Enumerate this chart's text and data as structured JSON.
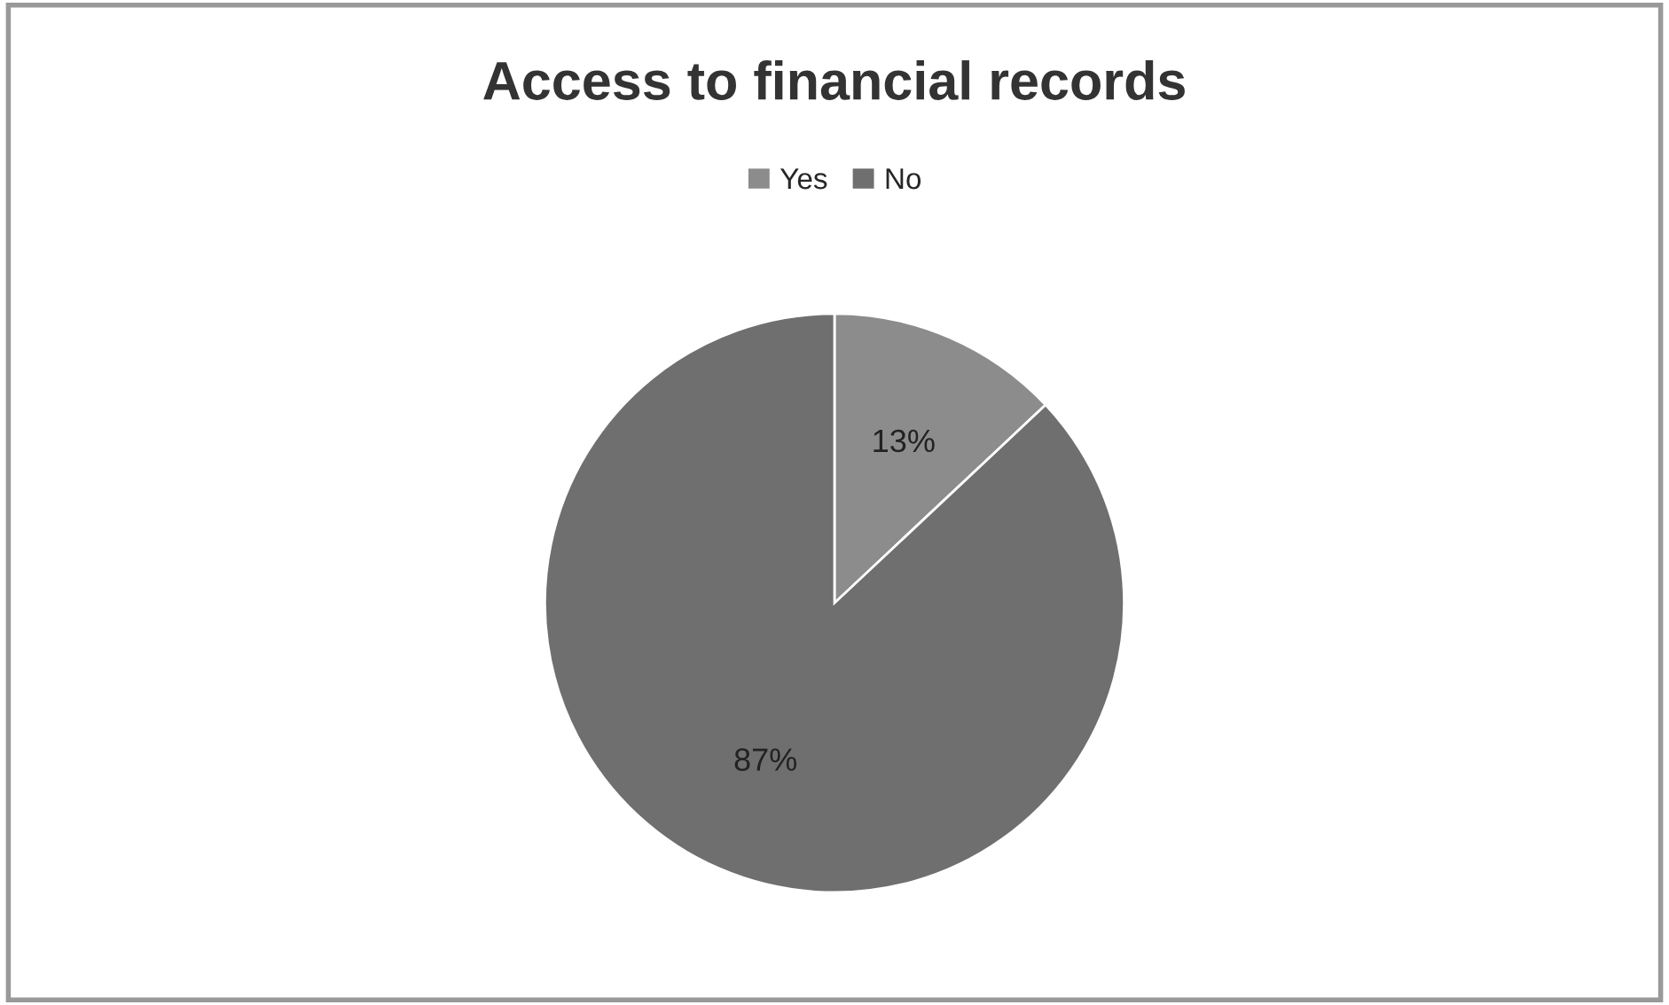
{
  "chart_data": {
    "type": "pie",
    "title": "Access to financial records",
    "categories": [
      "Yes",
      "No"
    ],
    "values": [
      13,
      87
    ],
    "colors": [
      "#8c8c8c",
      "#6f6f6f"
    ],
    "value_labels": [
      "13%",
      "87%"
    ],
    "legend": "top"
  }
}
